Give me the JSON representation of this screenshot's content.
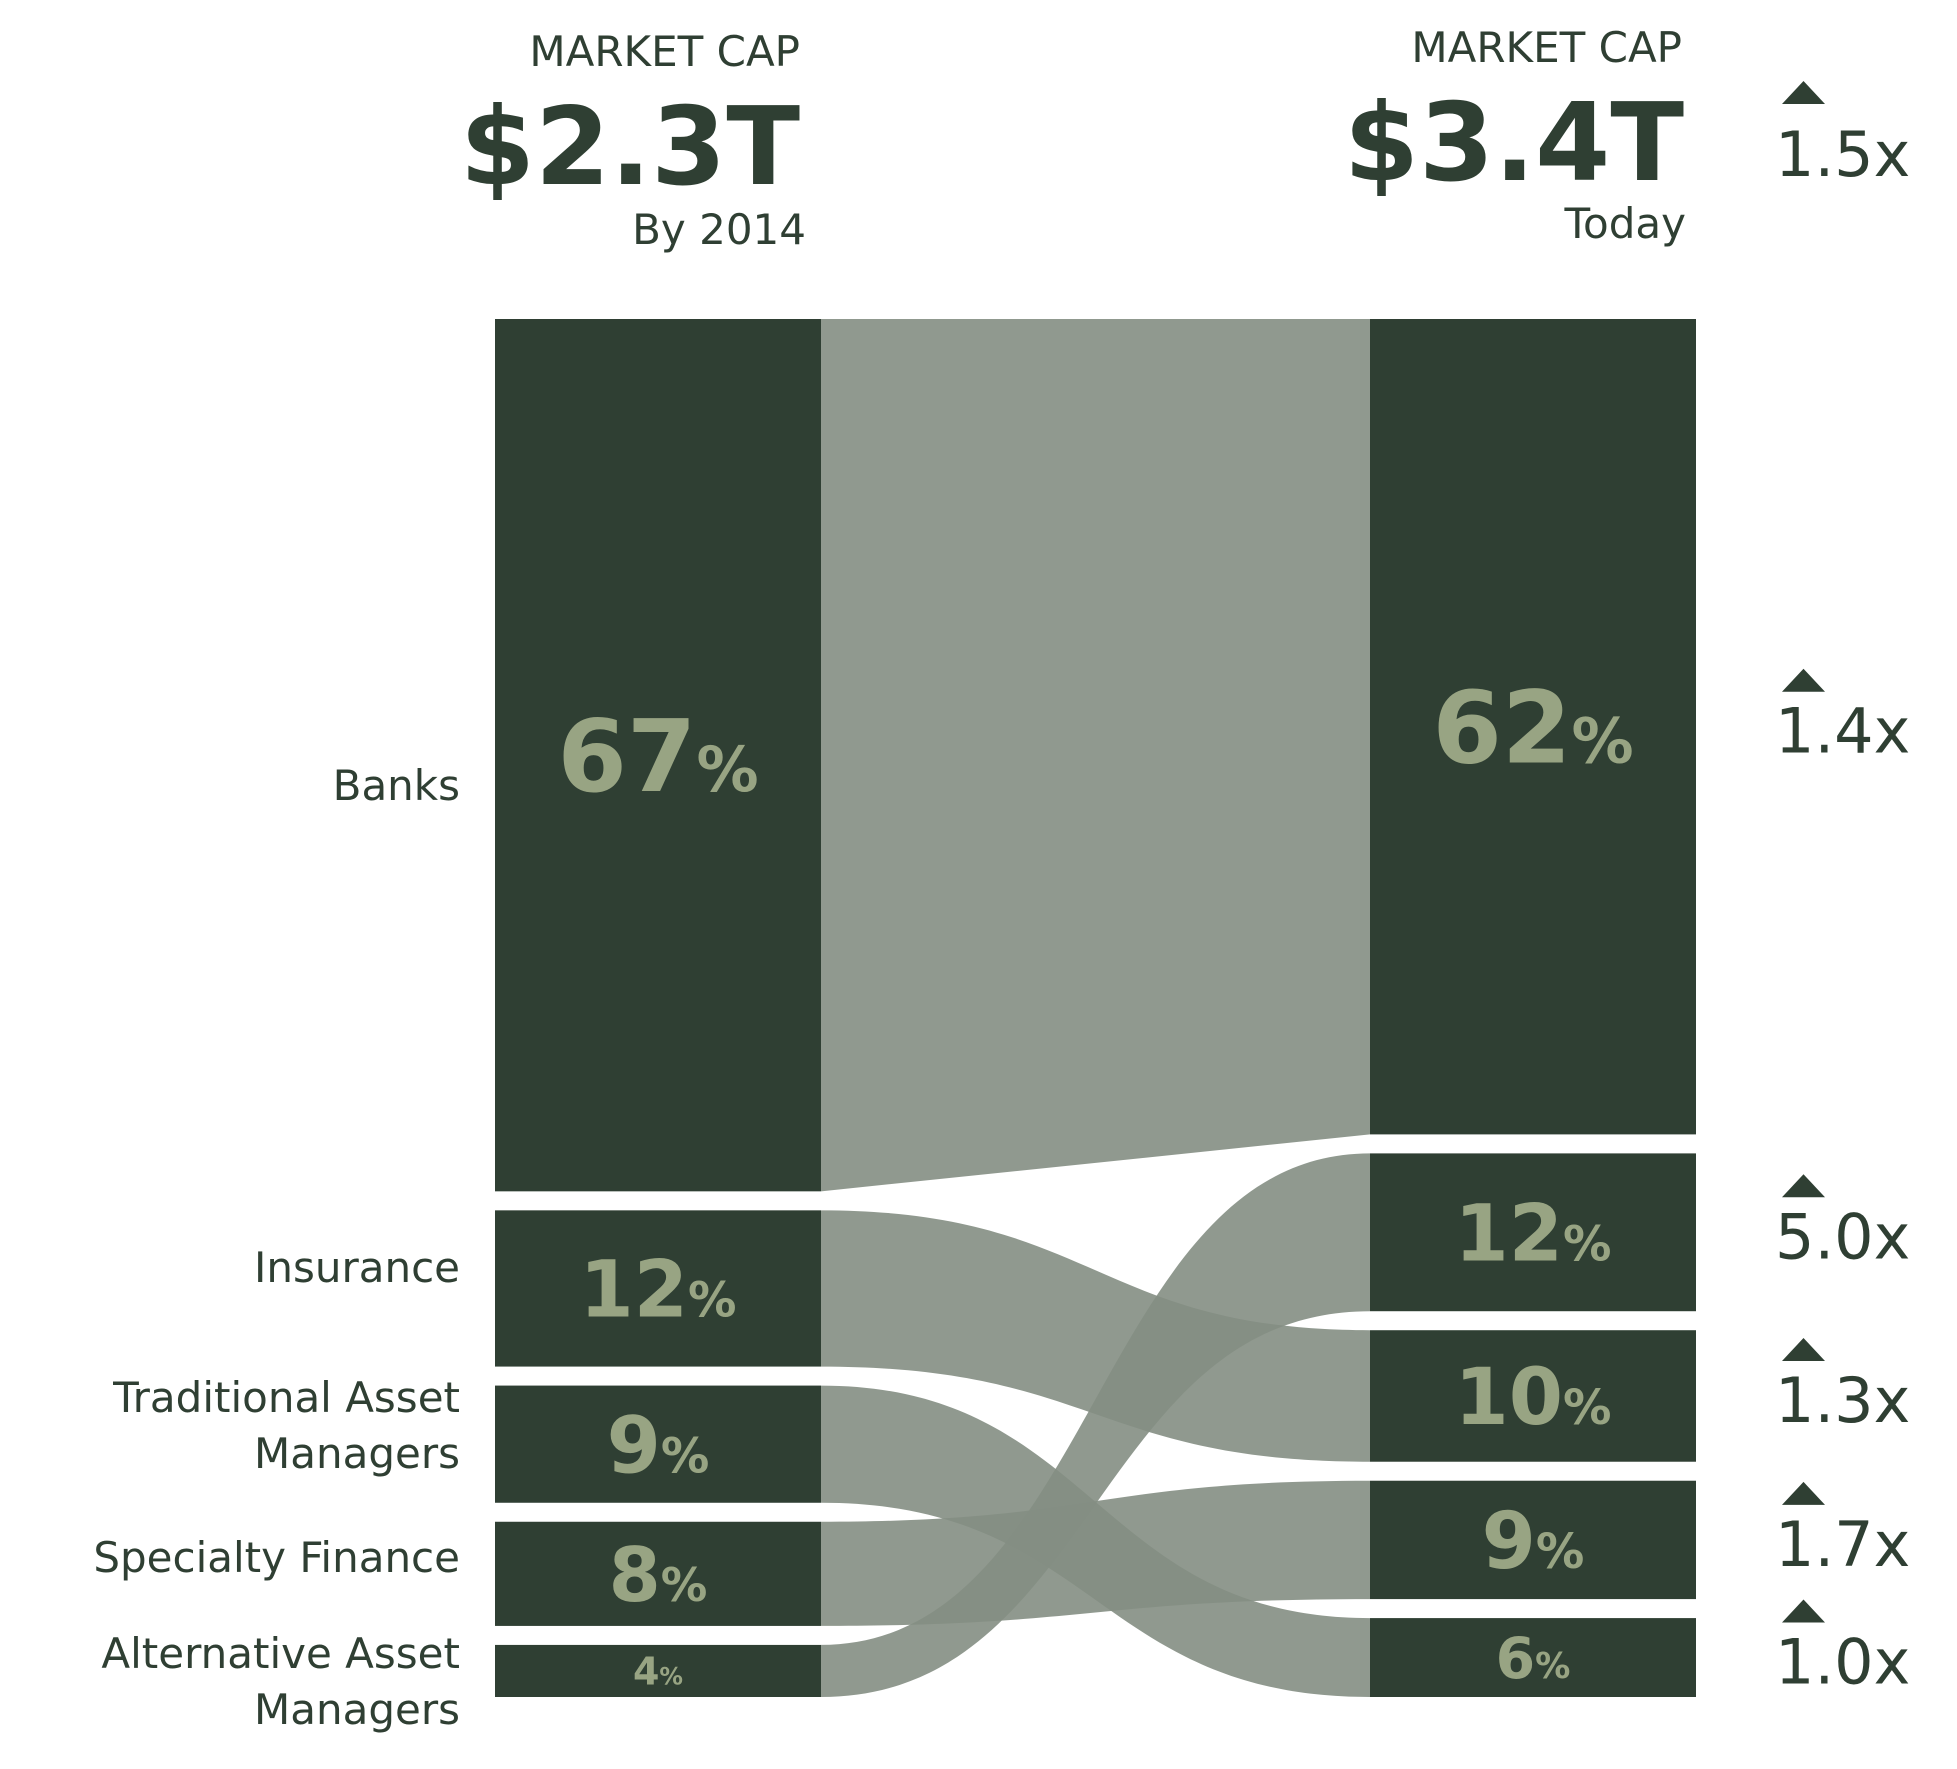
{
  "colors": {
    "bar": "#2f3f33",
    "flow": "#848e83",
    "flow_opacity": 0.9,
    "pct_text": "#98a483",
    "text": "#2f3f33",
    "background": "#ffffff"
  },
  "header_left": {
    "label": "MARKET CAP",
    "value": "$2.3T",
    "sub": "By 2014"
  },
  "header_right": {
    "label": "MARKET CAP",
    "value": "$3.4T",
    "sub": "Today"
  },
  "total_multiplier": "1.5x",
  "chart_data": {
    "type": "sankey",
    "title": "",
    "columns": [
      {
        "name": "By 2014",
        "total": "$2.3T"
      },
      {
        "name": "Today",
        "total": "$3.4T"
      }
    ],
    "categories": [
      "Banks",
      "Insurance",
      "Traditional Asset Managers",
      "Specialty Finance",
      "Alternative Asset Managers"
    ],
    "category_labels": [
      [
        "Banks"
      ],
      [
        "Insurance"
      ],
      [
        "Traditional Asset",
        "Managers"
      ],
      [
        "Specialty Finance"
      ],
      [
        "Alternative Asset",
        "Managers"
      ]
    ],
    "share_2014": [
      67,
      12,
      9,
      8,
      4
    ],
    "right_order": [
      "Banks",
      "Alternative Asset Managers",
      "Insurance",
      "Specialty Finance",
      "Traditional Asset Managers"
    ],
    "share_today": [
      62,
      12,
      10,
      9,
      6
    ],
    "multipliers": [
      "1.4x",
      "5.0x",
      "1.3x",
      "1.7x",
      "1.0x"
    ],
    "pct_suffix": "%"
  }
}
